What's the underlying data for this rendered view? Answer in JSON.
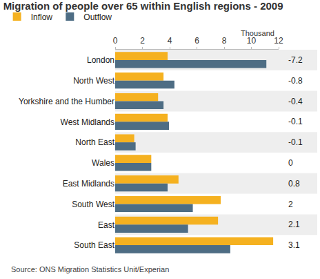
{
  "chart_data": {
    "type": "bar",
    "title": "Migration of people over 65 within English regions - 2009",
    "orientation": "horizontal",
    "categories": [
      "London",
      "North West",
      "Yorkshire and the Humber",
      "West Midlands",
      "North East",
      "Wales",
      "East Midlands",
      "South West",
      "East",
      "South East"
    ],
    "series": [
      {
        "name": "Inflow",
        "color": "#f5b120",
        "values": [
          3.85,
          3.55,
          3.15,
          3.85,
          1.4,
          2.65,
          4.65,
          7.75,
          7.55,
          11.6
        ]
      },
      {
        "name": "Outflow",
        "color": "#4e6d84",
        "values": [
          11.1,
          4.35,
          3.55,
          3.95,
          1.5,
          2.65,
          3.85,
          5.7,
          5.35,
          8.45
        ]
      }
    ],
    "net": [
      -7.2,
      -0.8,
      -0.4,
      -0.1,
      -0.1,
      0,
      0.8,
      2,
      2.1,
      3.1
    ],
    "xlabel": "Thousand",
    "xlim": [
      0,
      12
    ],
    "xticks": [
      0,
      2,
      4,
      6,
      8,
      10,
      12
    ],
    "legend": "top left",
    "grid": false,
    "source": "Source: ONS Migration Statistics Unit/Experian"
  }
}
